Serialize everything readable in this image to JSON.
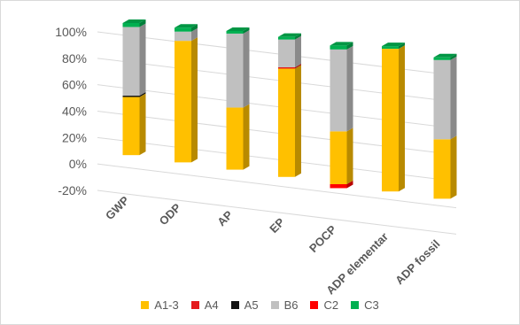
{
  "colors": {
    "A1-3": "#ffc000",
    "A4": "#e41a1c",
    "A5": "#111111",
    "B6": "#c0c0c0",
    "C2": "#ff0000",
    "C3": "#00b050"
  },
  "chart_data": {
    "type": "bar",
    "stacked": true,
    "style": "3d-column",
    "categories": [
      "GWP",
      "ODP",
      "AP",
      "EP",
      "POCP",
      "ADP elementar",
      "ADP fossil"
    ],
    "y_tick_labels": [
      "-20%",
      "0%",
      "20%",
      "40%",
      "60%",
      "80%",
      "100%"
    ],
    "ylim": [
      -20,
      100
    ],
    "grid": true,
    "legend_position": "bottom",
    "series": [
      {
        "name": "A1-3",
        "values": [
          44,
          92,
          47,
          82,
          40,
          108,
          45
        ]
      },
      {
        "name": "A4",
        "values": [
          0,
          0,
          0,
          1,
          0,
          0,
          0
        ]
      },
      {
        "name": "A5",
        "values": [
          1,
          0,
          0,
          0,
          0,
          0,
          0
        ]
      },
      {
        "name": "B6",
        "values": [
          52,
          7,
          56,
          21,
          62,
          0,
          60
        ]
      },
      {
        "name": "C2",
        "values": [
          0,
          0,
          0,
          0,
          -3,
          0,
          0
        ]
      },
      {
        "name": "C3",
        "values": [
          3,
          3,
          2,
          2,
          3,
          2,
          2
        ]
      }
    ]
  }
}
